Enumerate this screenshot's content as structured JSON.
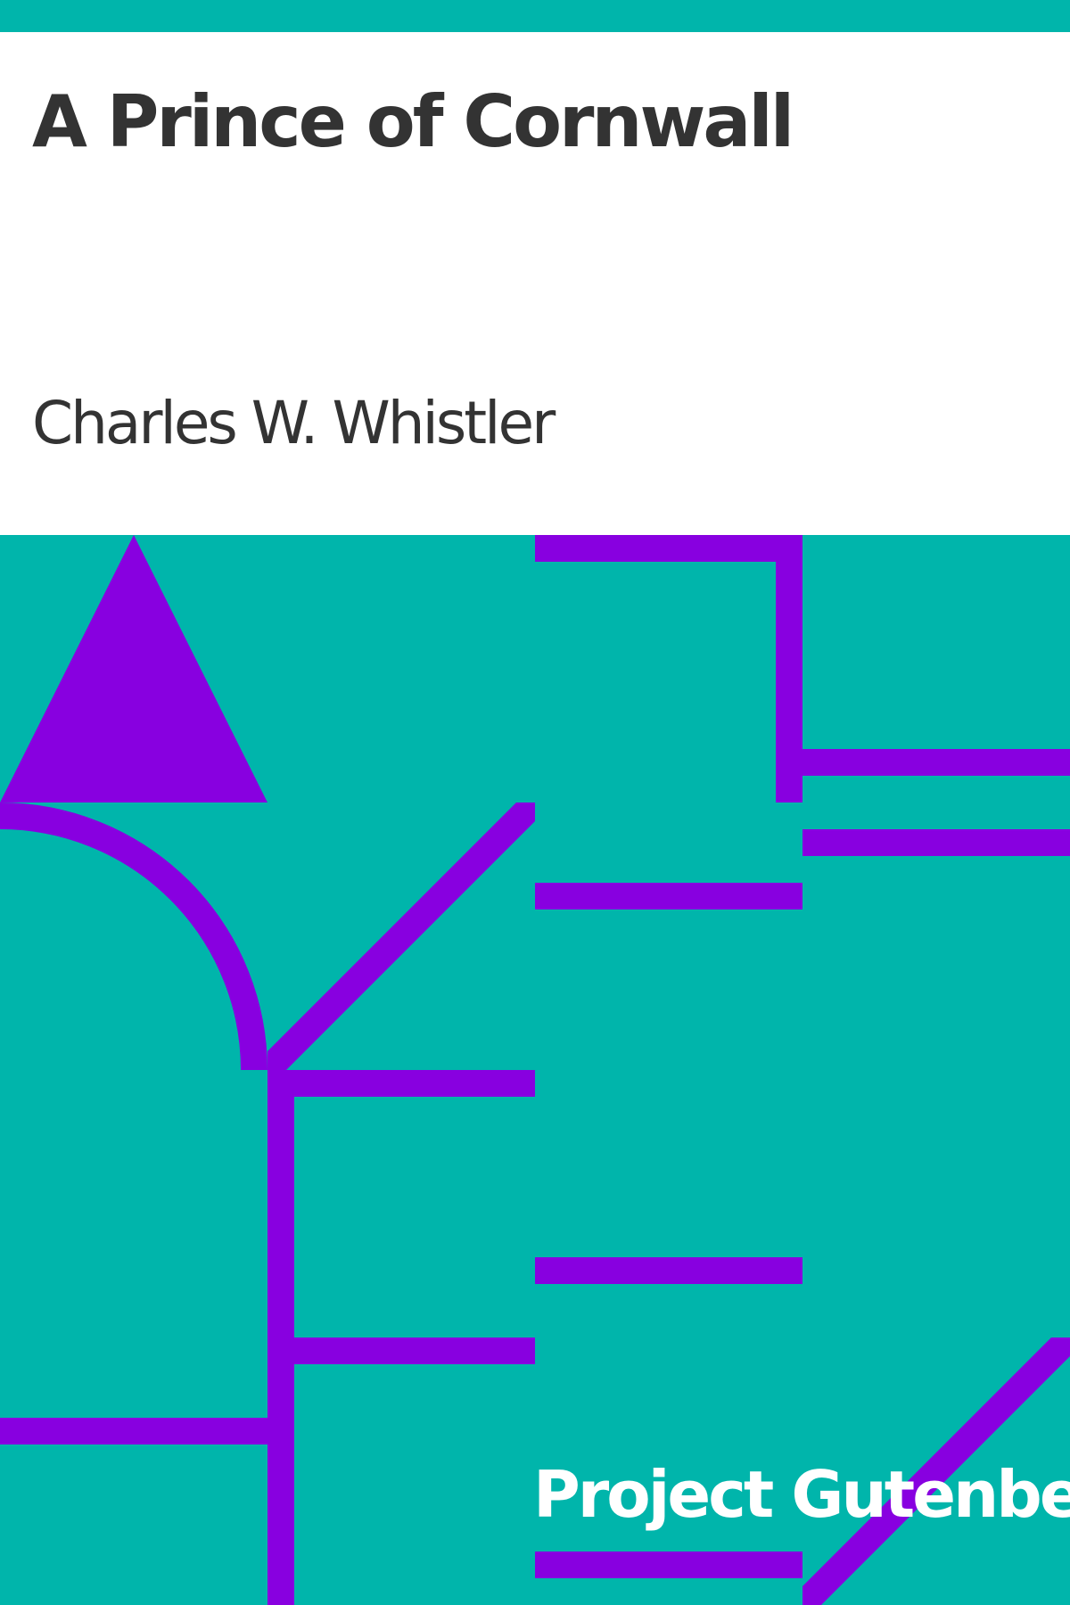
{
  "book": {
    "title": "A Prince of Cornwall",
    "author": "Charles W. Whistler"
  },
  "publisher": {
    "name": "Project Gutenberg"
  },
  "colors": {
    "background": "#00b5ab",
    "accent": "#8800e0",
    "panel": "#ffffff",
    "text": "#333333",
    "publisher_text": "#ffffff"
  }
}
